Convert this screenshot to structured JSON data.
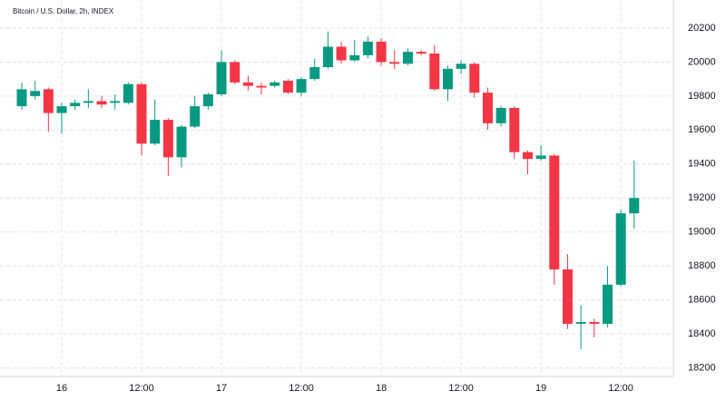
{
  "chart_data": {
    "type": "candlestick",
    "title": "Bitcoin / U.S. Dollar, 2h, INDEX",
    "categories": [
      null,
      null,
      null,
      "16",
      null,
      null,
      null,
      null,
      null,
      "12:00",
      null,
      null,
      null,
      null,
      null,
      "17",
      null,
      null,
      null,
      null,
      null,
      "12:00",
      null,
      null,
      null,
      null,
      null,
      "18",
      null,
      null,
      null,
      null,
      null,
      "12:00",
      null,
      null,
      null,
      null,
      null,
      "19",
      null,
      null,
      null,
      null,
      null,
      "12:00",
      null
    ],
    "open": [
      19740,
      19800,
      19840,
      19700,
      19740,
      19760,
      19770,
      19760,
      19760,
      19870,
      19520,
      19660,
      19440,
      19620,
      19740,
      19810,
      20000,
      19880,
      19860,
      19860,
      19890,
      19820,
      19900,
      19970,
      20090,
      20010,
      20040,
      20120,
      20000,
      19990,
      20060,
      20050,
      19840,
      19960,
      19990,
      19820,
      19640,
      19730,
      19470,
      19430,
      19450,
      18780,
      18460,
      18470,
      18460,
      18690,
      19110
    ],
    "high": [
      19880,
      19890,
      19850,
      19760,
      19780,
      19840,
      19800,
      19810,
      19880,
      19880,
      19780,
      19670,
      19630,
      19800,
      19820,
      20070,
      20010,
      19920,
      19880,
      19890,
      19900,
      19910,
      20020,
      20180,
      20120,
      20130,
      20150,
      20140,
      20070,
      20080,
      20070,
      20100,
      19980,
      20010,
      20000,
      19850,
      19740,
      19740,
      19480,
      19510,
      19460,
      18870,
      18570,
      18490,
      18800,
      19130,
      19420
    ],
    "low": [
      19720,
      19780,
      19590,
      19580,
      19720,
      19730,
      19730,
      19720,
      19750,
      19450,
      19510,
      19330,
      19380,
      19610,
      19720,
      19800,
      19870,
      19830,
      19810,
      19850,
      19810,
      19800,
      19890,
      19960,
      19990,
      20000,
      20020,
      19980,
      19960,
      19980,
      20040,
      19830,
      19770,
      19930,
      19790,
      19600,
      19620,
      19430,
      19340,
      19420,
      18690,
      18430,
      18310,
      18380,
      18440,
      18680,
      19020
    ],
    "close": [
      19840,
      19830,
      19700,
      19740,
      19760,
      19770,
      19750,
      19770,
      19870,
      19520,
      19660,
      19440,
      19620,
      19740,
      19810,
      20000,
      19880,
      19860,
      19850,
      19880,
      19820,
      19900,
      19970,
      20090,
      20010,
      20040,
      20120,
      20000,
      19990,
      20060,
      20050,
      19840,
      19960,
      19990,
      19820,
      19640,
      19730,
      19470,
      19430,
      19450,
      18780,
      18460,
      18470,
      18460,
      18690,
      19110,
      19200
    ],
    "up_color": "#089981",
    "down_color": "#f23645",
    "ylim": [
      18150,
      20365
    ],
    "yticks": [
      18200,
      18400,
      18600,
      18800,
      19000,
      19200,
      19400,
      19600,
      19800,
      20000,
      20200
    ],
    "grid": true
  }
}
